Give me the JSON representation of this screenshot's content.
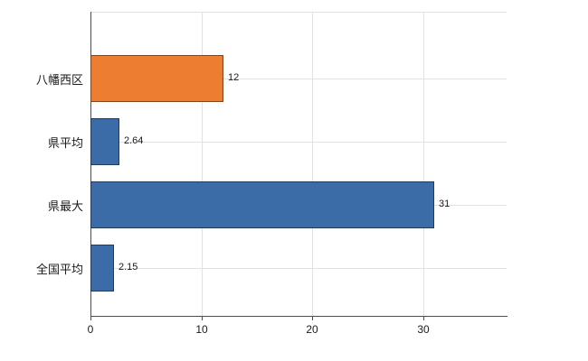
{
  "chart_data": {
    "type": "bar",
    "orientation": "horizontal",
    "title": "",
    "categories": [
      "八幡西区",
      "県平均",
      "県最大",
      "全国平均"
    ],
    "values": [
      12,
      2.64,
      31,
      2.15
    ],
    "value_labels": [
      "12",
      "2.64",
      "31",
      "2.15"
    ],
    "series_colors": [
      "#ED7D31",
      "#3B6CA8",
      "#3B6CA8",
      "#3B6CA8"
    ],
    "x_ticks": [
      0,
      10,
      20,
      30
    ],
    "x_tick_labels": [
      "0",
      "10",
      "20",
      "30"
    ],
    "xlim": [
      0,
      37.5
    ],
    "legend": "none",
    "grid": true
  },
  "style": {
    "accent_orange": "#ED7D31",
    "accent_blue": "#3B6CA8",
    "axis_color": "#4d4d4d",
    "gridline_color": "#e2e2e2",
    "label_color": "#1a1a1a",
    "background": "#ffffff"
  }
}
